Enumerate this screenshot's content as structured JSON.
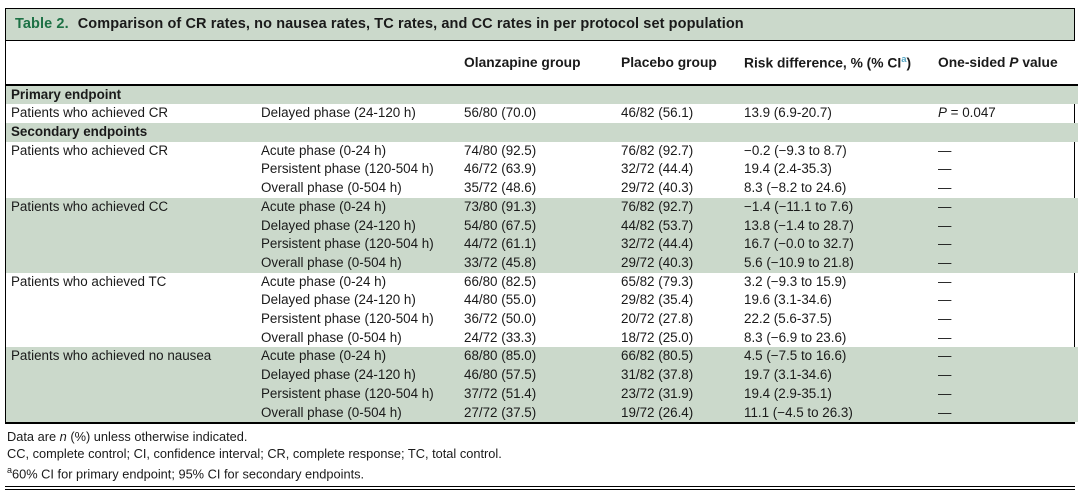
{
  "colors": {
    "band_green": "#cbd9cb",
    "title_green": "#1d7145",
    "superscript_blue": "#55a7c5",
    "border_black": "#000000"
  },
  "caption": {
    "label": "Table 2.",
    "text": "Comparison of CR rates, no nausea rates, TC rates, and CC rates in per protocol set population"
  },
  "columns": {
    "olanzapine": "Olanzapine group",
    "placebo": "Placebo group",
    "risk_prefix": "Risk difference, % (% CI",
    "risk_sup": "a",
    "risk_suffix": ")",
    "p_prefix": "One-sided ",
    "p_italic": "P",
    "p_suffix": " value"
  },
  "table": {
    "sections": [
      {
        "type": "header",
        "label": "Primary endpoint"
      },
      {
        "type": "group",
        "endpoint": "Patients who achieved CR",
        "shaded": false,
        "rows": [
          {
            "phase": "Delayed phase (24-120 h)",
            "olanzapine": "56/80 (70.0)",
            "placebo": "46/82 (56.1)",
            "risk_difference": "13.9 (6.9-20.7)",
            "p_value": {
              "italic": "P",
              "text": " = 0.047"
            }
          }
        ]
      },
      {
        "type": "header",
        "label": "Secondary endpoints"
      },
      {
        "type": "group",
        "endpoint": "Patients who achieved CR",
        "shaded": false,
        "rows": [
          {
            "phase": "Acute phase (0-24 h)",
            "olanzapine": "74/80 (92.5)",
            "placebo": "76/82 (92.7)",
            "risk_difference": "−0.2 (−9.3 to 8.7)",
            "p_value": "—"
          },
          {
            "phase": "Persistent phase (120-504 h)",
            "olanzapine": "46/72 (63.9)",
            "placebo": "32/72 (44.4)",
            "risk_difference": "19.4 (2.4-35.3)",
            "p_value": "—"
          },
          {
            "phase": "Overall phase (0-504 h)",
            "olanzapine": "35/72 (48.6)",
            "placebo": "29/72 (40.3)",
            "risk_difference": "8.3 (−8.2 to 24.6)",
            "p_value": "—"
          }
        ]
      },
      {
        "type": "group",
        "endpoint": "Patients who achieved CC",
        "shaded": true,
        "rows": [
          {
            "phase": "Acute phase (0-24 h)",
            "olanzapine": "73/80 (91.3)",
            "placebo": "76/82 (92.7)",
            "risk_difference": "−1.4 (−11.1 to 7.6)",
            "p_value": "—"
          },
          {
            "phase": "Delayed phase (24-120 h)",
            "olanzapine": "54/80 (67.5)",
            "placebo": "44/82 (53.7)",
            "risk_difference": "13.8 (−1.4 to 28.7)",
            "p_value": "—"
          },
          {
            "phase": "Persistent phase (120-504 h)",
            "olanzapine": "44/72 (61.1)",
            "placebo": "32/72 (44.4)",
            "risk_difference": "16.7 (−0.0 to 32.7)",
            "p_value": "—"
          },
          {
            "phase": "Overall phase (0-504 h)",
            "olanzapine": "33/72 (45.8)",
            "placebo": "29/72 (40.3)",
            "risk_difference": "5.6 (−10.9 to 21.8)",
            "p_value": "—"
          }
        ]
      },
      {
        "type": "group",
        "endpoint": "Patients who achieved TC",
        "shaded": false,
        "rows": [
          {
            "phase": "Acute phase (0-24 h)",
            "olanzapine": "66/80 (82.5)",
            "placebo": "65/82 (79.3)",
            "risk_difference": "3.2 (−9.3 to 15.9)",
            "p_value": "—"
          },
          {
            "phase": "Delayed phase (24-120 h)",
            "olanzapine": "44/80 (55.0)",
            "placebo": "29/82 (35.4)",
            "risk_difference": "19.6 (3.1-34.6)",
            "p_value": "—"
          },
          {
            "phase": "Persistent phase (120-504 h)",
            "olanzapine": "36/72 (50.0)",
            "placebo": "20/72 (27.8)",
            "risk_difference": "22.2 (5.6-37.5)",
            "p_value": "—"
          },
          {
            "phase": "Overall phase (0-504 h)",
            "olanzapine": "24/72 (33.3)",
            "placebo": "18/72 (25.0)",
            "risk_difference": "8.3 (−6.9 to 23.6)",
            "p_value": "—"
          }
        ]
      },
      {
        "type": "group",
        "endpoint": "Patients who achieved no nausea",
        "shaded": true,
        "rows": [
          {
            "phase": "Acute phase (0-24 h)",
            "olanzapine": "68/80 (85.0)",
            "placebo": "66/82 (80.5)",
            "risk_difference": "4.5 (−7.5 to 16.6)",
            "p_value": "—"
          },
          {
            "phase": "Delayed phase (24-120 h)",
            "olanzapine": "46/80 (57.5)",
            "placebo": "31/82 (37.8)",
            "risk_difference": "19.7 (3.1-34.6)",
            "p_value": "—"
          },
          {
            "phase": "Persistent phase (120-504 h)",
            "olanzapine": "37/72 (51.4)",
            "placebo": "23/72 (31.9)",
            "risk_difference": "19.4 (2.9-35.1)",
            "p_value": "—"
          },
          {
            "phase": "Overall phase (0-504 h)",
            "olanzapine": "27/72 (37.5)",
            "placebo": "19/72 (26.4)",
            "risk_difference": "11.1 (−4.5 to 26.3)",
            "p_value": "—"
          }
        ]
      }
    ]
  },
  "footnotes": {
    "line1": {
      "pre": "Data are ",
      "italic": "n",
      "post": " (%) unless otherwise indicated."
    },
    "line2": "CC, complete control; CI, confidence interval; CR, complete response; TC, total control.",
    "line3": {
      "sup": "a",
      "text": "60% CI for primary endpoint; 95% CI for secondary endpoints."
    }
  }
}
